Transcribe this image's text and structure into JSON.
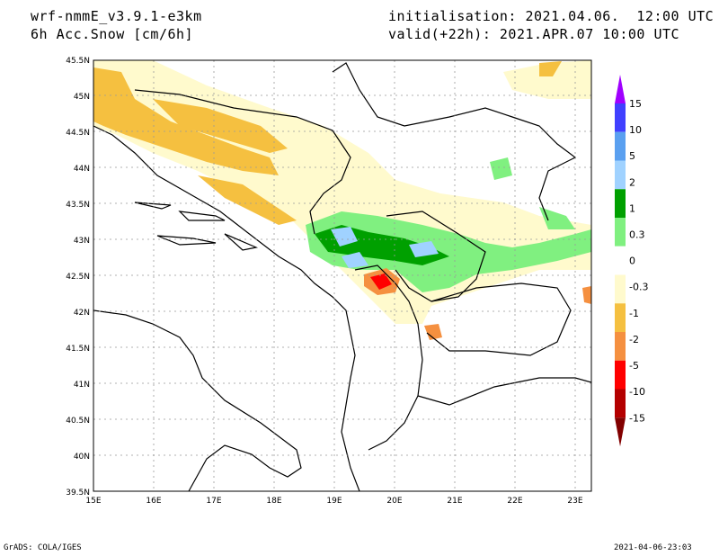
{
  "header": {
    "model": "wrf-nmmE_v3.9.1-e3km",
    "field": "6h Acc.Snow [cm/6h]",
    "init": "initialisation: 2021.04.06.  12:00 UTC",
    "valid": "valid(+22h): 2021.APR.07 10:00 UTC"
  },
  "map": {
    "lat_labels": [
      "45.5N",
      "45N",
      "44.5N",
      "44N",
      "43.5N",
      "43N",
      "42.5N",
      "42N",
      "41.5N",
      "41N",
      "40.5N",
      "40N",
      "39.5N"
    ],
    "lon_labels": [
      "15E",
      "16E",
      "17E",
      "18E",
      "19E",
      "20E",
      "21E",
      "22E",
      "23E"
    ],
    "lat_range": [
      39.5,
      45.5
    ],
    "lon_range": [
      15,
      23.3
    ],
    "gridlines": true
  },
  "legend": {
    "labels": [
      "15",
      "10",
      "5",
      "2",
      "1",
      "0.3",
      "0",
      "-0.3",
      "-1",
      "-2",
      "-5",
      "-10",
      "-15"
    ],
    "colors": [
      "#a000ff",
      "#4040ff",
      "#5aa0f0",
      "#a0d2ff",
      "#00a000",
      "#80f080",
      "#ffffff",
      "#fffacd",
      "#f5c040",
      "#f59040",
      "#ff0000",
      "#b40000",
      "#820000"
    ]
  },
  "footer": {
    "left": "GrADS: COLA/IGES",
    "right": "2021-04-06-23:03"
  }
}
